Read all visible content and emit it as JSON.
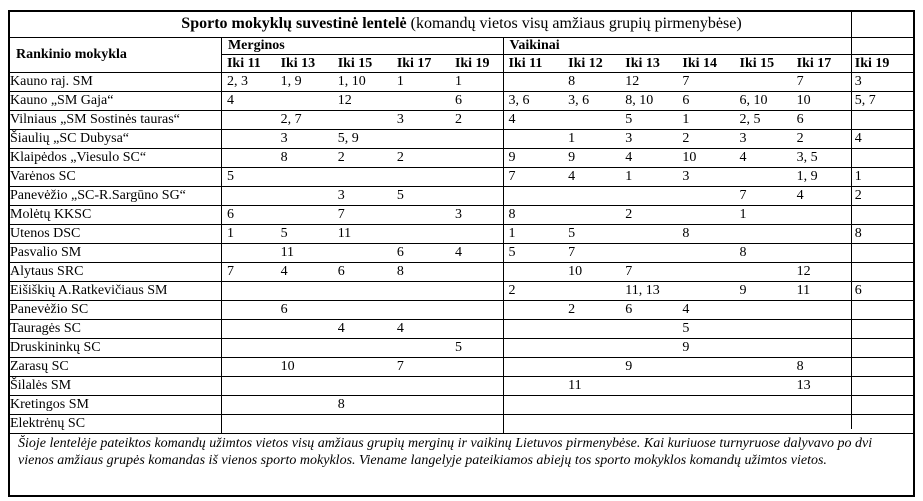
{
  "title": {
    "bold": "Sporto mokyklų suvestinė lentelė",
    "normal": " (komandų vietos visų amžiaus grupių pirmenybėse)"
  },
  "header": {
    "school_col": "Rankinio mokykla",
    "girls_label": "Merginos",
    "boys_label": "Vaikinai",
    "girls_age_cols": [
      "Iki 11",
      "Iki 13",
      "Iki 15",
      "Iki 17",
      "Iki 19"
    ],
    "boys_age_cols": [
      "Iki 11",
      "Iki 12",
      "Iki 13",
      "Iki 14",
      "Iki 15",
      "Iki 17",
      "Iki 19"
    ]
  },
  "rows": [
    {
      "school": "Kauno raj. SM",
      "girls": [
        "2, 3",
        "1, 9",
        "1, 10",
        "1",
        "1"
      ],
      "boys": [
        "",
        "8",
        "12",
        "7",
        "",
        "7",
        "3"
      ]
    },
    {
      "school": "Kauno „SM Gaja“",
      "girls": [
        "4",
        "",
        "12",
        "",
        "6"
      ],
      "boys": [
        "3, 6",
        "3, 6",
        "8, 10",
        "6",
        "6, 10",
        "10",
        "5, 7"
      ]
    },
    {
      "school": "Vilniaus „SM Sostinės tauras“",
      "girls": [
        "",
        "2, 7",
        "",
        "3",
        "2"
      ],
      "boys": [
        "4",
        "",
        "5",
        "1",
        "2, 5",
        "6",
        ""
      ]
    },
    {
      "school": "Šiaulių „SC Dubysa“",
      "girls": [
        "",
        "3",
        "5, 9",
        "",
        ""
      ],
      "boys": [
        "",
        "1",
        "3",
        "2",
        "3",
        "2",
        "4"
      ]
    },
    {
      "school": "Klaipėdos „Viesulo SC“",
      "girls": [
        "",
        "8",
        "2",
        "2",
        ""
      ],
      "boys": [
        "9",
        "9",
        "4",
        "10",
        "4",
        "3, 5",
        ""
      ]
    },
    {
      "school": "Varėnos SC",
      "girls": [
        "5",
        "",
        "",
        "",
        ""
      ],
      "boys": [
        "7",
        "4",
        "1",
        "3",
        "",
        "1, 9",
        "1"
      ]
    },
    {
      "school": "Panevėžio „SC-R.Sargūno SG“",
      "girls": [
        "",
        "",
        "3",
        "5",
        ""
      ],
      "boys": [
        "",
        "",
        "",
        "",
        "7",
        "4",
        "2"
      ]
    },
    {
      "school": "Molėtų KKSC",
      "girls": [
        "6",
        "",
        "7",
        "",
        "3"
      ],
      "boys": [
        "8",
        "",
        "2",
        "",
        "1",
        "",
        ""
      ]
    },
    {
      "school": "Utenos DSC",
      "girls": [
        "1",
        "5",
        "11",
        "",
        ""
      ],
      "boys": [
        "1",
        "5",
        "",
        "8",
        "",
        "",
        "8"
      ]
    },
    {
      "school": "Pasvalio SM",
      "girls": [
        "",
        "11",
        "",
        "6",
        "4"
      ],
      "boys": [
        "5",
        "7",
        "",
        "",
        "8",
        "",
        ""
      ]
    },
    {
      "school": "Alytaus SRC",
      "girls": [
        "7",
        "4",
        "6",
        "8",
        ""
      ],
      "boys": [
        "",
        "10",
        "7",
        "",
        "",
        "12",
        ""
      ]
    },
    {
      "school": "Eišiškių A.Ratkevičiaus SM",
      "girls": [
        "",
        "",
        "",
        "",
        ""
      ],
      "boys": [
        "2",
        "",
        "11, 13",
        "",
        "9",
        "11",
        "6"
      ]
    },
    {
      "school": "Panevėžio SC",
      "girls": [
        "",
        "6",
        "",
        "",
        ""
      ],
      "boys": [
        "",
        "2",
        "6",
        "4",
        "",
        "",
        ""
      ]
    },
    {
      "school": "Tauragės SC",
      "girls": [
        "",
        "",
        "4",
        "4",
        ""
      ],
      "boys": [
        "",
        "",
        "",
        "5",
        "",
        "",
        ""
      ]
    },
    {
      "school": "Druskininkų SC",
      "girls": [
        "",
        "",
        "",
        "",
        "5"
      ],
      "boys": [
        "",
        "",
        "",
        "9",
        "",
        "",
        ""
      ]
    },
    {
      "school": "Zarasų SC",
      "girls": [
        "",
        "10",
        "",
        "7",
        ""
      ],
      "boys": [
        "",
        "",
        "9",
        "",
        "",
        "8",
        ""
      ]
    },
    {
      "school": "Šilalės SM",
      "girls": [
        "",
        "",
        "",
        "",
        ""
      ],
      "boys": [
        "",
        "11",
        "",
        "",
        "",
        "13",
        ""
      ]
    },
    {
      "school": "Kretingos SM",
      "girls": [
        "",
        "",
        "8",
        "",
        ""
      ],
      "boys": [
        "",
        "",
        "",
        "",
        "",
        "",
        ""
      ]
    },
    {
      "school": "Elektrėnų SC",
      "girls": [
        "",
        "",
        "",
        "",
        ""
      ],
      "boys": [
        "",
        "",
        "",
        "",
        "",
        "",
        ""
      ]
    }
  ],
  "footer_note": "Šioje lentelėje pateiktos komandų užimtos vietos visų amžiaus grupių merginų ir vaikinų Lietuvos pirmenybėse. Kai kuriuose turnyruose dalyvavo po dvi vienos amžiaus grupės komandas iš vienos sporto mokyklos. Viename langelyje pateikiamos abiejų tos sporto mokyklos komandų užimtos vietos.",
  "colors": {
    "border": "#000000",
    "text": "#000000",
    "background": "#ffffff"
  }
}
